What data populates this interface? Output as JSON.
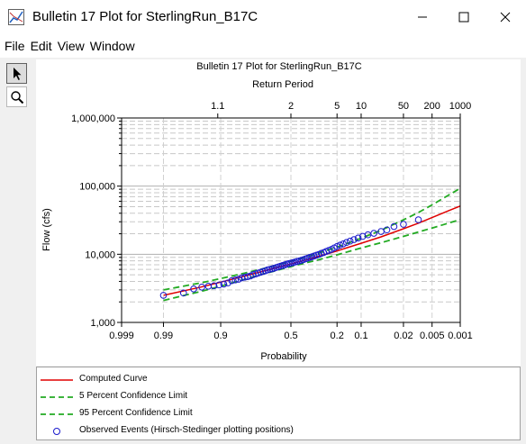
{
  "window": {
    "title": "Bulletin 17 Plot for SterlingRun_B17C",
    "minimize_icon": "minimize-icon",
    "maximize_icon": "maximize-icon",
    "close_icon": "close-icon"
  },
  "menu": [
    "File",
    "Edit",
    "View",
    "Window"
  ],
  "tools": [
    {
      "name": "pointer-tool",
      "icon": "arrow-pointer-icon",
      "pressed": true
    },
    {
      "name": "zoom-tool",
      "icon": "magnifier-icon",
      "pressed": false
    }
  ],
  "chart_data": {
    "type": "scatter",
    "title": "Bulletin 17 Plot for SterlingRun_B17C",
    "xlabel": "Probability",
    "ylabel": "Flow (cfs)",
    "top_axis_label": "Return Period",
    "x_scale": "normal-probability (exceedance)",
    "y_scale": "log",
    "xlim": [
      0.999,
      0.001
    ],
    "ylim": [
      1000,
      1000000
    ],
    "x_ticks": [
      0.999,
      0.99,
      0.9,
      0.5,
      0.2,
      0.1,
      0.02,
      0.005,
      0.001
    ],
    "x_tick_labels": [
      "0.999",
      "0.99",
      "0.9",
      "0.5",
      "0.2",
      "0.1",
      "0.02",
      "0.005",
      "0.001"
    ],
    "top_ticks": [
      1.1,
      2,
      5,
      10,
      50,
      200,
      1000
    ],
    "top_tick_labels": [
      "1.1",
      "2",
      "5",
      "10",
      "50",
      "200",
      "1000"
    ],
    "y_ticks": [
      1000,
      10000,
      100000,
      1000000
    ],
    "y_tick_labels": [
      "1,000",
      "10,000",
      "100,000",
      "1,000,000"
    ],
    "grid": true,
    "series": [
      {
        "name": "Computed Curve",
        "color": "#e00000",
        "style": "solid",
        "x": [
          0.99,
          0.95,
          0.9,
          0.8,
          0.7,
          0.6,
          0.5,
          0.4,
          0.3,
          0.2,
          0.1,
          0.05,
          0.02,
          0.01,
          0.005,
          0.002,
          0.001
        ],
        "y": [
          2500,
          3300,
          3900,
          4800,
          5600,
          6400,
          7200,
          8200,
          9400,
          11200,
          14500,
          18000,
          23700,
          28600,
          34500,
          43600,
          51000
        ]
      },
      {
        "name": "5 Percent Confidence Limit",
        "color": "#22aa22",
        "style": "dashed",
        "x": [
          0.99,
          0.95,
          0.9,
          0.8,
          0.7,
          0.6,
          0.5,
          0.4,
          0.3,
          0.2,
          0.1,
          0.05,
          0.02,
          0.01,
          0.005,
          0.002,
          0.001
        ],
        "y": [
          3000,
          3800,
          4400,
          5300,
          6100,
          7000,
          7900,
          9000,
          10500,
          12700,
          17200,
          22500,
          32000,
          41000,
          53000,
          74000,
          93000
        ]
      },
      {
        "name": "95 Percent Confidence Limit",
        "color": "#22aa22",
        "style": "dashed",
        "x": [
          0.99,
          0.95,
          0.9,
          0.8,
          0.7,
          0.6,
          0.5,
          0.4,
          0.3,
          0.2,
          0.1,
          0.05,
          0.02,
          0.01,
          0.005,
          0.002,
          0.001
        ],
        "y": [
          2100,
          2850,
          3400,
          4300,
          5100,
          5800,
          6600,
          7400,
          8400,
          9800,
          12400,
          14800,
          18300,
          21200,
          24300,
          28700,
          32300
        ]
      },
      {
        "name": "Observed Events (Hirsch-Stedinger plotting positions)",
        "color": "#1a1acc",
        "style": "circle",
        "x": [
          0.99,
          0.975,
          0.962,
          0.948,
          0.934,
          0.92,
          0.905,
          0.89,
          0.875,
          0.86,
          0.845,
          0.83,
          0.815,
          0.8,
          0.785,
          0.77,
          0.755,
          0.74,
          0.725,
          0.71,
          0.695,
          0.68,
          0.665,
          0.65,
          0.635,
          0.62,
          0.605,
          0.59,
          0.575,
          0.56,
          0.545,
          0.53,
          0.515,
          0.5,
          0.485,
          0.47,
          0.455,
          0.44,
          0.425,
          0.41,
          0.395,
          0.38,
          0.365,
          0.35,
          0.335,
          0.32,
          0.305,
          0.29,
          0.275,
          0.26,
          0.245,
          0.23,
          0.215,
          0.2,
          0.185,
          0.17,
          0.155,
          0.14,
          0.125,
          0.11,
          0.095,
          0.08,
          0.065,
          0.05,
          0.04,
          0.03,
          0.02,
          0.01
        ],
        "y": [
          2500,
          2700,
          3100,
          3300,
          3400,
          3450,
          3550,
          3650,
          3800,
          4100,
          4200,
          4300,
          4500,
          4600,
          4700,
          4800,
          5000,
          5150,
          5300,
          5450,
          5600,
          5700,
          5900,
          6000,
          6100,
          6250,
          6400,
          6550,
          6700,
          6850,
          7000,
          7150,
          7300,
          7400,
          7550,
          7700,
          7850,
          8000,
          8150,
          8350,
          8550,
          8750,
          9000,
          9200,
          9450,
          9700,
          9950,
          10300,
          10600,
          11000,
          11400,
          11800,
          12400,
          13000,
          13600,
          14200,
          14900,
          15600,
          16400,
          17300,
          18300,
          19300,
          20300,
          21600,
          22800,
          25500,
          27500,
          32000
        ]
      }
    ],
    "legend_position": "bottom"
  }
}
